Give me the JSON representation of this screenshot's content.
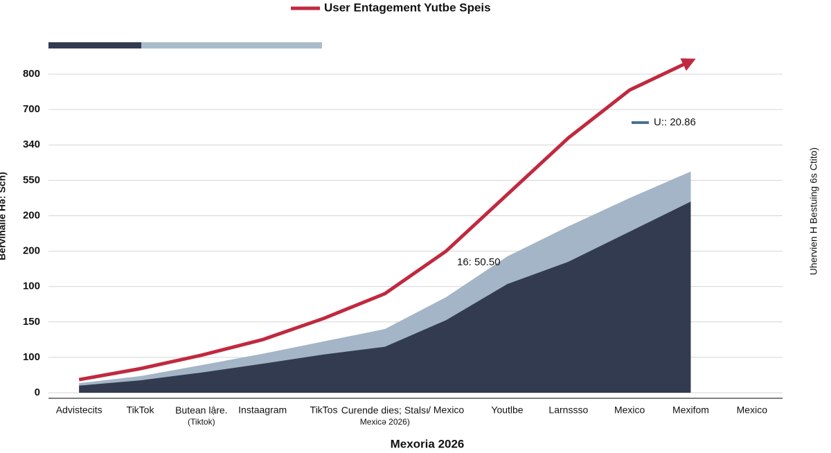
{
  "chart_data": {
    "type": "area",
    "x_label": "Mexoria 2026",
    "y_label": "Bervihalle Hə: Sch)",
    "y2_label": "Uhervien H Bestuing 6s Ctito)",
    "annotations": [
      "U:: 20.86",
      "16: 50.50"
    ],
    "categories": [
      "Advistecits",
      "TikTok",
      "Butean lậre.\n(Tiktok)",
      "Instaagram",
      "TikTos",
      "Curende dies; Stalsı\nMexicə 2026)",
      "/ Mexico",
      "Youtlbe",
      "Larnssso",
      "Mexico",
      "Mexifom",
      "Mexico"
    ],
    "series": [
      {
        "name": "User Entagement Yutbe Speis",
        "color": "#c0293f",
        "kind": "line",
        "values": [
          0.37,
          0.68,
          1.06,
          1.5,
          2.1,
          2.8,
          4.0,
          5.6,
          7.2,
          8.55,
          9.37,
          null
        ]
      },
      {
        "color": "#a3b5c6",
        "kind": "area",
        "values": [
          0.27,
          0.47,
          0.78,
          1.1,
          1.45,
          1.8,
          2.7,
          3.85,
          4.7,
          5.5,
          6.25,
          null
        ]
      },
      {
        "color": "#333b51",
        "kind": "area",
        "values": [
          0.2,
          0.35,
          0.57,
          0.82,
          1.08,
          1.3,
          2.05,
          3.07,
          3.7,
          4.55,
          5.4,
          null
        ]
      }
    ],
    "ylim": [
      0,
      9.5
    ],
    "yticks": [
      0,
      {
        "value": 1,
        "label": "100"
      },
      {
        "value": 2,
        "label": "150"
      },
      {
        "value": 3,
        "label": "100"
      },
      {
        "value": 4,
        "label": "200"
      },
      {
        "value": 5,
        "label": "200"
      },
      {
        "value": 6,
        "label": "550"
      },
      {
        "value": 7,
        "label": "340"
      },
      {
        "value": 8,
        "label": "700"
      },
      {
        "value": 9,
        "label": "800"
      }
    ],
    "grid": true
  }
}
